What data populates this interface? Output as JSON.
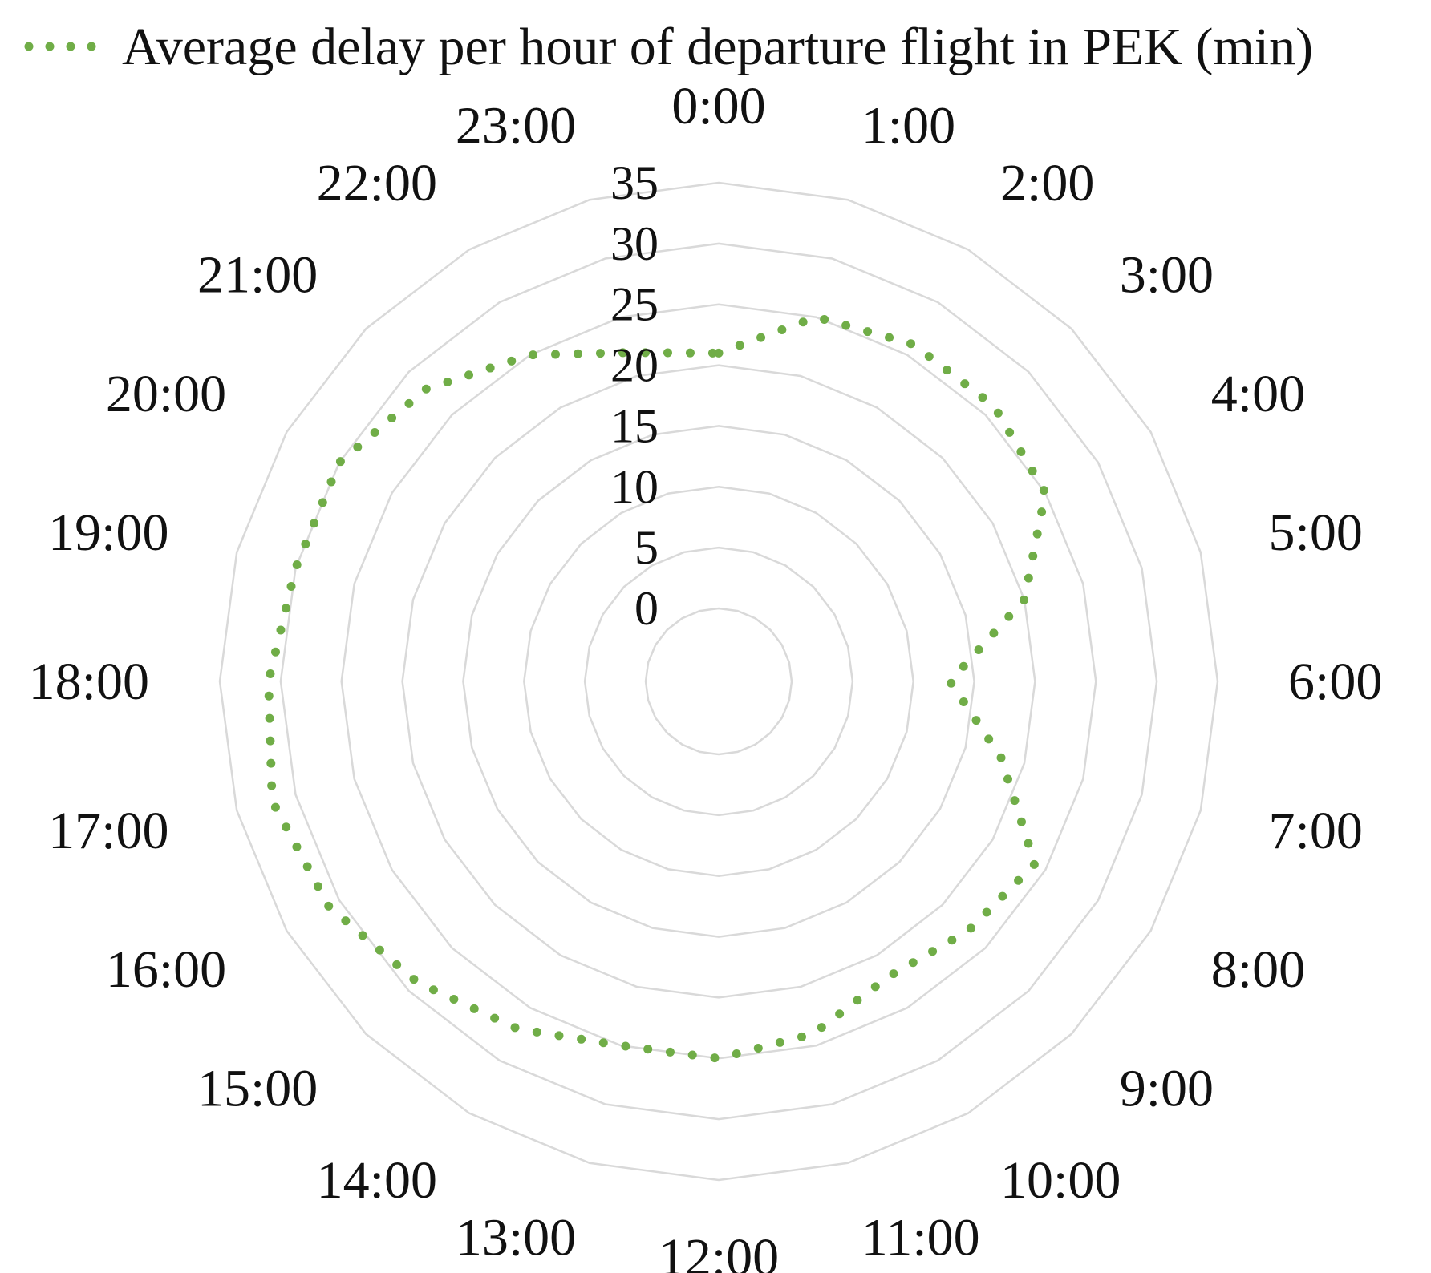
{
  "chart_data": {
    "type": "radar",
    "title": "",
    "categories": [
      "0:00",
      "1:00",
      "2:00",
      "3:00",
      "4:00",
      "5:00",
      "6:00",
      "7:00",
      "8:00",
      "9:00",
      "10:00",
      "11:00",
      "12:00",
      "13:00",
      "14:00",
      "15:00",
      "16:00",
      "17:00",
      "18:00",
      "19:00",
      "20:00",
      "21:00",
      "22:00",
      "23:00"
    ],
    "series": [
      {
        "name": "Average delay per hour of departure flight in PEK (min)",
        "color": "#70ad47",
        "line_style": "round-dot",
        "values": [
          21,
          25,
          26,
          26,
          25,
          20,
          13,
          18,
          24,
          23,
          22,
          24,
          25,
          25,
          27,
          29,
          31,
          32,
          31,
          30,
          30,
          28,
          25,
          22
        ]
      }
    ],
    "radial_axis": {
      "min": 0,
      "max": 35,
      "step": 5,
      "tick_labels": [
        "0",
        "5",
        "10",
        "15",
        "20",
        "25",
        "30",
        "35"
      ]
    },
    "gridlines": true,
    "grid_color": "#d9d9d9",
    "legend_position": "top"
  }
}
